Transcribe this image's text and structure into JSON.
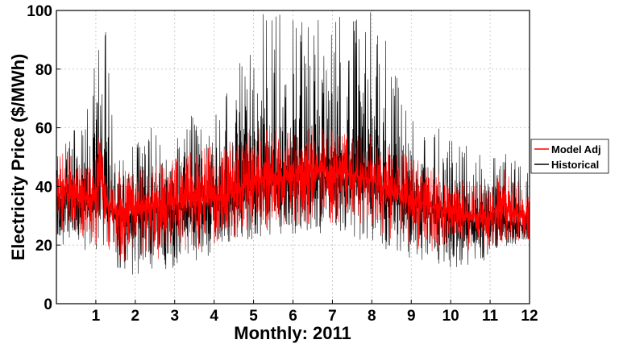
{
  "chart_data": {
    "type": "line",
    "title": "",
    "xlabel": "Monthly: 2011",
    "ylabel": "Electricity Price ($/MWh)",
    "xlim": [
      0,
      12
    ],
    "ylim": [
      0,
      100
    ],
    "x_ticks": [
      "1",
      "2",
      "3",
      "4",
      "5",
      "6",
      "7",
      "8",
      "9",
      "10",
      "11",
      "12"
    ],
    "y_ticks": [
      "0",
      "20",
      "40",
      "60",
      "80",
      "100"
    ],
    "grid": true,
    "legend_position": "right",
    "series": [
      {
        "name": "Model Adj",
        "color": "#ff0000",
        "x": [
          0,
          0.25,
          0.5,
          0.75,
          1.0,
          1.1,
          1.25,
          1.5,
          2,
          2.5,
          3,
          3.5,
          4,
          4.5,
          5,
          5.5,
          6,
          6.5,
          7,
          7.5,
          8,
          8.5,
          9,
          9.5,
          10,
          10.5,
          11,
          11.25,
          11.5,
          12
        ],
        "values": [
          37,
          38,
          37,
          36,
          35,
          52,
          34,
          31,
          32,
          33,
          34,
          36,
          36,
          38,
          42,
          43,
          44,
          45,
          45,
          44,
          42,
          38,
          36,
          33,
          31,
          30,
          29,
          35,
          31,
          30
        ],
        "low": [
          25,
          24,
          23,
          20,
          18,
          22,
          18,
          14,
          13,
          15,
          16,
          18,
          20,
          22,
          25,
          26,
          27,
          27,
          27,
          26,
          25,
          22,
          18,
          18,
          17,
          18,
          19,
          20,
          21,
          22
        ],
        "high": [
          50,
          52,
          50,
          48,
          49,
          60,
          47,
          45,
          46,
          48,
          50,
          52,
          54,
          56,
          62,
          62,
          60,
          60,
          60,
          58,
          58,
          54,
          50,
          47,
          43,
          42,
          42,
          50,
          43,
          40
        ]
      },
      {
        "name": "Historical",
        "color": "#000000",
        "x": [
          0,
          0.25,
          0.5,
          0.75,
          1.0,
          1.1,
          1.25,
          1.5,
          2,
          2.5,
          3,
          3.5,
          4,
          4.5,
          5,
          5.5,
          6,
          6.5,
          7,
          7.5,
          8,
          8.5,
          9,
          9.5,
          10,
          10.5,
          11,
          11.25,
          11.5,
          12
        ],
        "values": [
          35,
          36,
          35,
          34,
          34,
          50,
          33,
          30,
          30,
          31,
          32,
          33,
          34,
          36,
          40,
          41,
          42,
          43,
          43,
          42,
          40,
          36,
          34,
          31,
          29,
          28,
          27,
          30,
          28,
          26
        ],
        "low": [
          16,
          22,
          21,
          18,
          16,
          20,
          16,
          12,
          9,
          11,
          12,
          14,
          17,
          20,
          22,
          23,
          24,
          24,
          24,
          23,
          19,
          18,
          15,
          14,
          12,
          13,
          14,
          18,
          20,
          21
        ],
        "high": [
          60,
          70,
          65,
          62,
          100,
          100,
          100,
          58,
          60,
          60,
          62,
          65,
          68,
          75,
          100,
          100,
          100,
          100,
          100,
          100,
          100,
          90,
          70,
          62,
          58,
          55,
          50,
          60,
          50,
          45
        ]
      }
    ]
  }
}
